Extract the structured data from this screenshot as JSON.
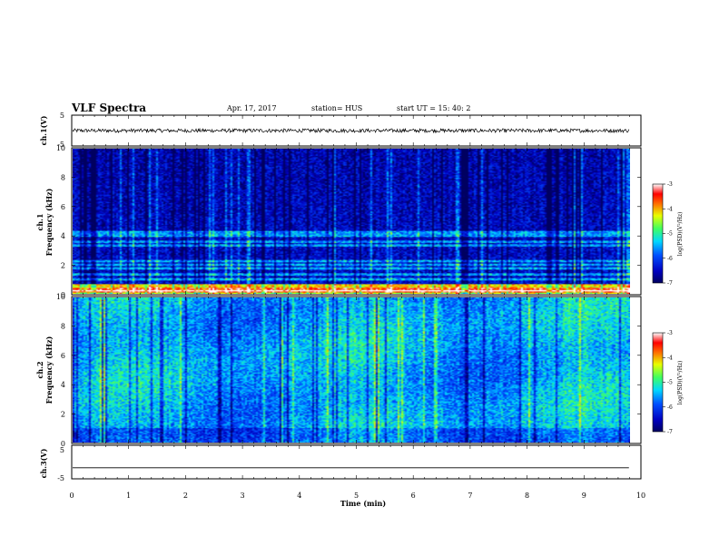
{
  "header": {
    "title": "VLF Spectra",
    "date": "Apr. 17, 2017",
    "station": "station= HUS",
    "start": "start  UT =   15: 40: 2"
  },
  "chart_data": [
    {
      "type": "line",
      "panel": "ch1-waveform",
      "ylabel": "ch.1(V)",
      "ylim": [
        -5,
        5
      ],
      "yticks": [
        "5",
        "-5"
      ],
      "xlim": [
        0,
        10
      ],
      "description_values": {
        "mean": 0,
        "amplitude": 0.6
      }
    },
    {
      "type": "heatmap",
      "panel": "ch1-spectrogram",
      "ylabel": "ch.1  Frequency (kHz)",
      "ylabel_parts": [
        "ch.1",
        "Frequency (kHz)"
      ],
      "ylim": [
        0,
        10
      ],
      "yticks": [
        "0",
        "2",
        "4",
        "6",
        "8",
        "10"
      ],
      "xlim": [
        0,
        9.8
      ],
      "colorbar": {
        "label": "log(PSD)(V²/Hz)",
        "range": [
          -7,
          -3
        ],
        "ticks": [
          "-3",
          "-4",
          "-5",
          "-6",
          "-7"
        ]
      },
      "bands_khz": [
        0.1,
        0.25,
        0.5,
        1.0,
        1.3,
        1.7,
        2.0,
        2.2,
        3.3,
        3.6,
        4.0,
        4.2
      ],
      "base_level": -6.4
    },
    {
      "type": "heatmap",
      "panel": "ch2-spectrogram",
      "ylabel": "ch.2  Frequency (kHz)",
      "ylabel_parts": [
        "ch.2",
        "Frequency (kHz)"
      ],
      "ylim": [
        0,
        10
      ],
      "yticks": [
        "0",
        "2",
        "4",
        "6",
        "8",
        "10"
      ],
      "xlim": [
        0,
        9.8
      ],
      "colorbar": {
        "label": "log(PSD)(V²/Hz)",
        "range": [
          -7,
          -3
        ],
        "ticks": [
          "-3",
          "-4",
          "-5",
          "-6",
          "-7"
        ]
      },
      "base_level": -5.5
    },
    {
      "type": "line",
      "panel": "ch3-waveform",
      "ylabel": "ch.3(V)",
      "ylim": [
        -5,
        5
      ],
      "yticks": [
        "5",
        "-5"
      ],
      "xlim": [
        0,
        10
      ],
      "description_values": {
        "mean": -1.7,
        "amplitude": 0
      }
    }
  ],
  "xaxis": {
    "label": "Time  (min)",
    "ticks": [
      "0",
      "1",
      "2",
      "3",
      "4",
      "5",
      "6",
      "7",
      "8",
      "9",
      "10"
    ]
  },
  "colors": {
    "dark_blue": "#0000a0",
    "blue": "#0030ff",
    "cyan": "#00d8ff",
    "green": "#40ff40",
    "yellow": "#ffff00",
    "red": "#ff2000",
    "frame": "#000000"
  }
}
